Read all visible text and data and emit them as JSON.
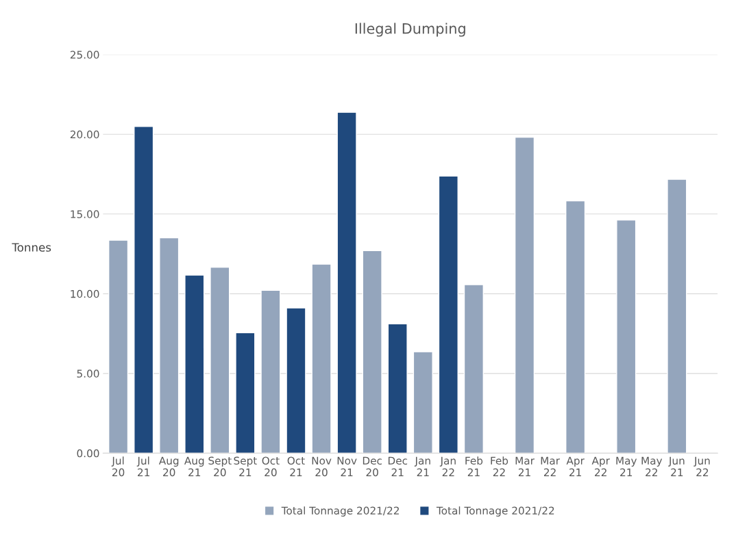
{
  "chart_data": {
    "type": "bar",
    "title": "Illegal Dumping",
    "ylabel": "Tonnes",
    "categories": [
      "Jul\n20",
      "Jul\n21",
      "Aug\n20",
      "Aug\n21",
      "Sept\n20",
      "Sept\n21",
      "Oct\n20",
      "Oct\n21",
      "Nov\n20",
      "Nov\n21",
      "Dec\n20",
      "Dec\n21",
      "Jan\n21",
      "Jan\n22",
      "Feb\n21",
      "Feb\n22",
      "Mar\n21",
      "Mar\n22",
      "Apr\n21",
      "Apr\n22",
      "May\n21",
      "May\n22",
      "Jun\n21",
      "Jun\n22"
    ],
    "series": [
      {
        "name": "Total Tonnage 2021/22",
        "color": "#94a5bc",
        "values": [
          13.36,
          null,
          13.51,
          null,
          11.66,
          null,
          10.22,
          null,
          11.86,
          null,
          12.7,
          null,
          6.36,
          null,
          10.57,
          null,
          19.82,
          null,
          15.83,
          null,
          14.63,
          null,
          17.18,
          null
        ]
      },
      {
        "name": "Total Tonnage 2021/22",
        "color": "#1f497d",
        "values": [
          null,
          20.49,
          null,
          11.17,
          null,
          7.55,
          null,
          9.11,
          null,
          21.38,
          null,
          8.11,
          null,
          17.38,
          null,
          null,
          null,
          null,
          null,
          null,
          null,
          null,
          null,
          null
        ]
      }
    ],
    "ylim": [
      0,
      25
    ],
    "yticks": [
      {
        "value": 0,
        "label": "0.00"
      },
      {
        "value": 5,
        "label": "5.00"
      },
      {
        "value": 10,
        "label": "10.00"
      },
      {
        "value": 15,
        "label": "15.00"
      },
      {
        "value": 20,
        "label": "20.00"
      },
      {
        "value": 25,
        "label": "25.00"
      }
    ],
    "grid": "y",
    "legend": "bottom"
  }
}
